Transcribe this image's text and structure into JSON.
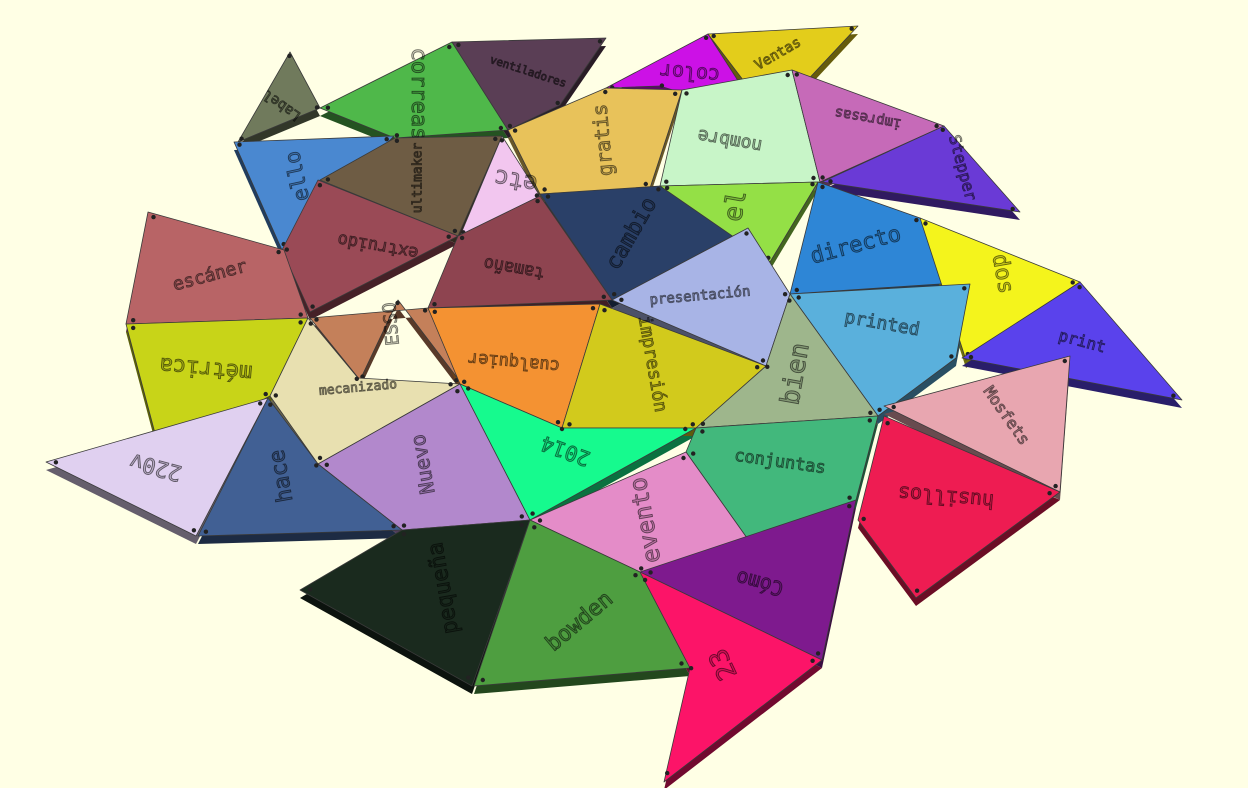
{
  "background": "#ffffe5",
  "tiles": [
    {
      "word": "Label",
      "color": "#707a5c"
    },
    {
      "word": "correas",
      "color": "#4fb84a"
    },
    {
      "word": "ventiladores",
      "color": "#5a3e55"
    },
    {
      "word": "color",
      "color": "#cc11e6"
    },
    {
      "word": "Ventas",
      "color": "#e3cd1b"
    },
    {
      "word": "ello",
      "color": "#4a88d0"
    },
    {
      "word": "ultimaker",
      "color": "#6e5c44"
    },
    {
      "word": "gratis",
      "color": "#e8c25a"
    },
    {
      "word": "nombre",
      "color": "#c8f5c8"
    },
    {
      "word": "impresas",
      "color": "#c66ab8"
    },
    {
      "word": "Stepper",
      "color": "#6a3ad6"
    },
    {
      "word": "etc",
      "color": "#f2c6ef"
    },
    {
      "word": "extruido",
      "color": "#9a4a56"
    },
    {
      "word": "cambio",
      "color": "#2a4068"
    },
    {
      "word": "el",
      "color": "#94e046"
    },
    {
      "word": "directo",
      "color": "#2e86d6"
    },
    {
      "word": "dos",
      "color": "#f4f41c"
    },
    {
      "word": "escáner",
      "color": "#b86466"
    },
    {
      "word": "tamaño",
      "color": "#8e4450"
    },
    {
      "word": "presentación",
      "color": "#a8b4e6"
    },
    {
      "word": "printed",
      "color": "#5ab0dc"
    },
    {
      "word": "print",
      "color": "#5a42ec"
    },
    {
      "word": "ESSO",
      "color": "#c4805a"
    },
    {
      "word": "cualquier",
      "color": "#f49232"
    },
    {
      "word": "impresión",
      "color": "#d2ca1c"
    },
    {
      "word": "bien",
      "color": "#9eb68c"
    },
    {
      "word": "Mosfets",
      "color": "#e8a6b0"
    },
    {
      "word": "métrica",
      "color": "#c8d418"
    },
    {
      "word": "mecanizado",
      "color": "#e8e0b0"
    },
    {
      "word": "Nuevo",
      "color": "#b288cc"
    },
    {
      "word": "2014",
      "color": "#16fa8e"
    },
    {
      "word": "conjuntas",
      "color": "#42b87c"
    },
    {
      "word": "husillos",
      "color": "#ee1c52"
    },
    {
      "word": "220v",
      "color": "#e0d0f0"
    },
    {
      "word": "hace",
      "color": "#416094"
    },
    {
      "word": "evento",
      "color": "#e48cc8"
    },
    {
      "word": "pequeña",
      "color": "#1a2a1e"
    },
    {
      "word": "bowden",
      "color": "#4e9e40"
    },
    {
      "word": "Cómo",
      "color": "#7e1a8e"
    },
    {
      "word": "23",
      "color": "#fc1468"
    }
  ]
}
